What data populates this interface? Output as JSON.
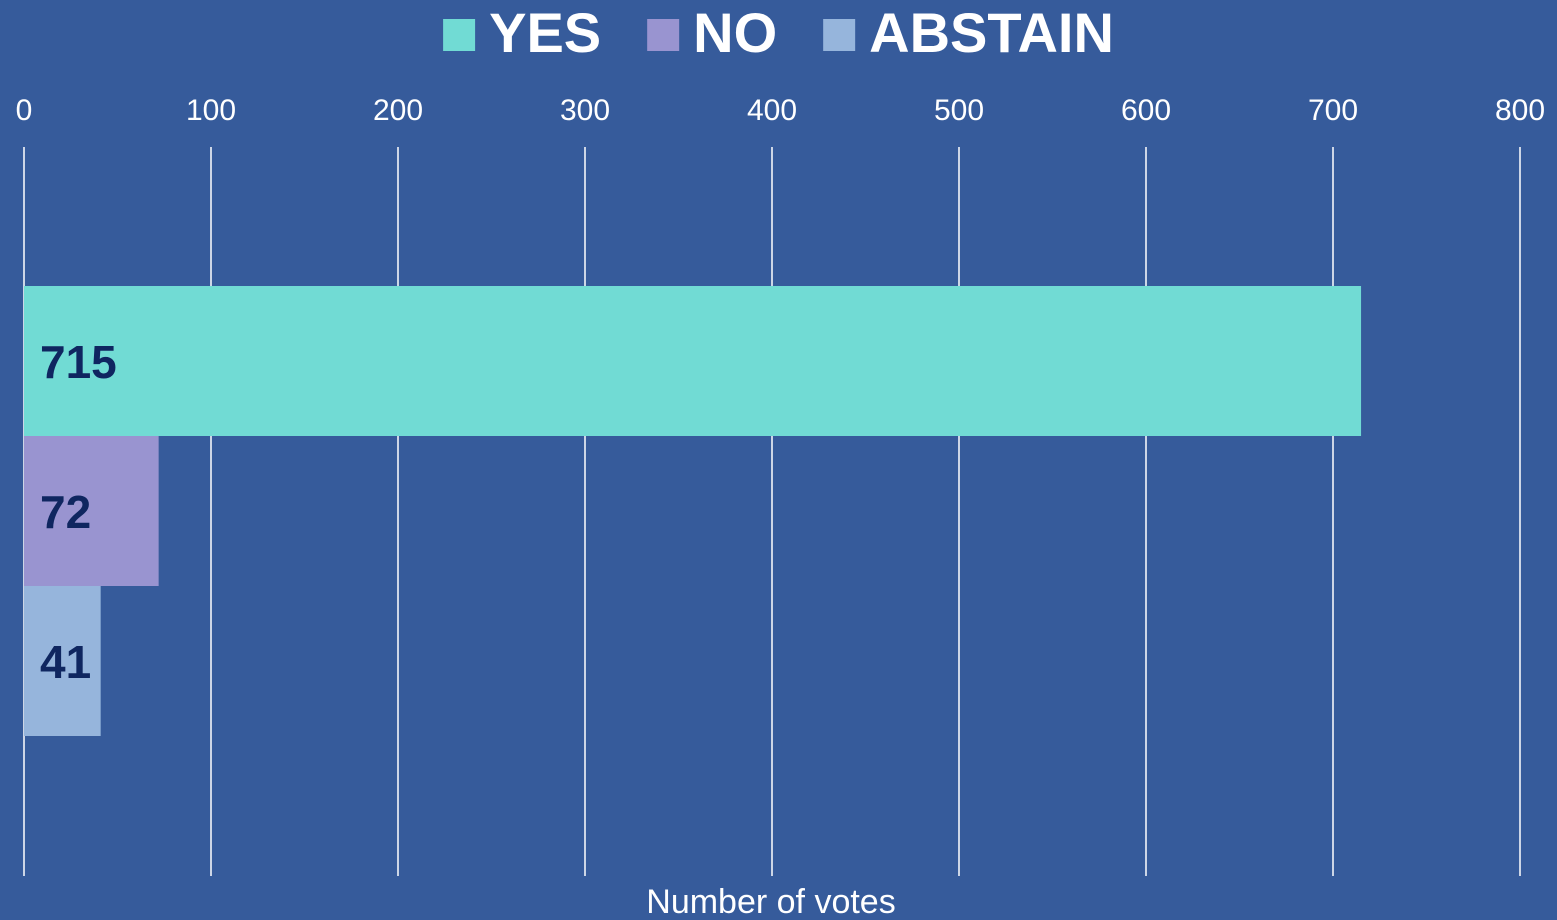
{
  "chart_data": {
    "type": "bar",
    "orientation": "horizontal",
    "xlabel": "Number of votes",
    "xlim": [
      0,
      800
    ],
    "ticks": [
      0,
      100,
      200,
      300,
      400,
      500,
      600,
      700,
      800
    ],
    "tick_labels": [
      "0",
      "100",
      "200",
      "300",
      "400",
      "500",
      "600",
      "700",
      "800"
    ],
    "grid": true,
    "legend_placement": "top-center",
    "series": [
      {
        "name": "YES",
        "value": 715,
        "label": "715",
        "color": "#71dbd4"
      },
      {
        "name": "NO",
        "value": 72,
        "label": "72",
        "color": "#9994d0"
      },
      {
        "name": "ABSTAIN",
        "value": 41,
        "label": "41",
        "color": "#96b5dc"
      }
    ]
  },
  "colors": {
    "background": "#365b9b",
    "text": "#ffffff",
    "data_label": "#0f2660",
    "grid": "#ffffff"
  }
}
